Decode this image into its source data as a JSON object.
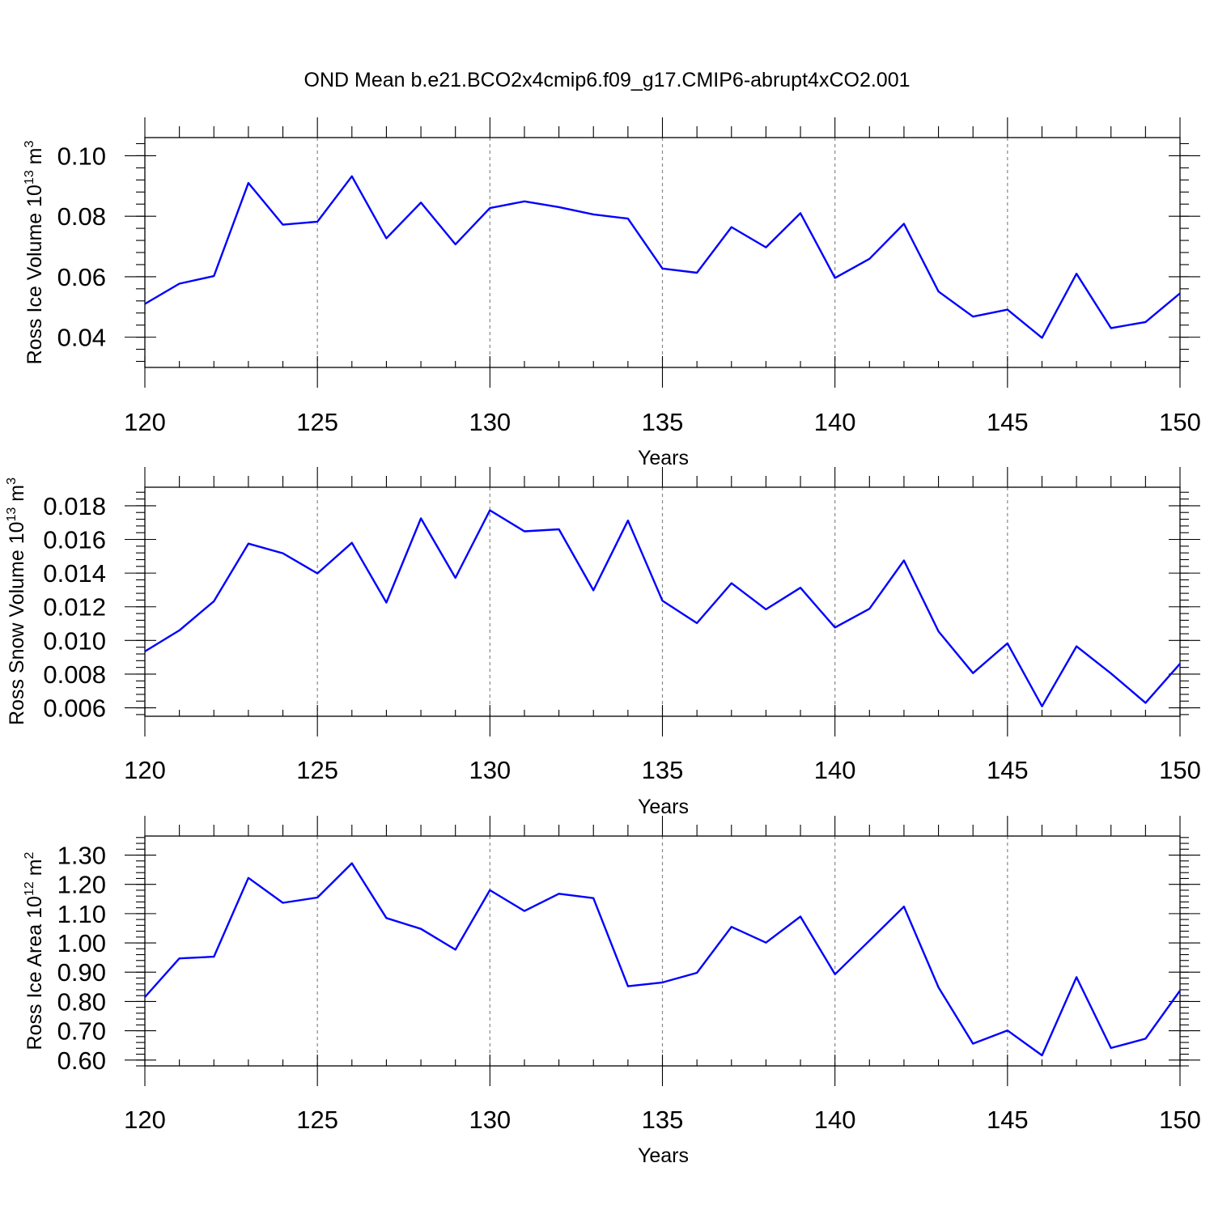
{
  "title": "OND Mean b.e21.BCO2x4cmip6.f09_g17.CMIP6-abrupt4xCO2.001",
  "colors": {
    "line": "#0000ff",
    "grid": "#888888",
    "axis": "#000000"
  },
  "chart_data": [
    {
      "type": "line",
      "xlabel": "Years",
      "ylabel": "Ross Ice Volume 10",
      "ylabel_sup1": "13",
      "ylabel_unit": " m",
      "ylabel_sup2": "3",
      "xlim": [
        120,
        150
      ],
      "ylim": [
        0.03,
        0.106
      ],
      "x_ticks": [
        "120",
        "125",
        "130",
        "135",
        "140",
        "145",
        "150"
      ],
      "y_ticks": [
        "0.04",
        "0.06",
        "0.08",
        "0.10"
      ],
      "y_tick_values": [
        0.04,
        0.06,
        0.08,
        0.1
      ],
      "y_minor_step": 0.004,
      "grid": "x dashed",
      "x": [
        120,
        121,
        122,
        123,
        124,
        125,
        126,
        127,
        128,
        129,
        130,
        131,
        132,
        133,
        134,
        135,
        136,
        137,
        138,
        139,
        140,
        141,
        142,
        143,
        144,
        145,
        146,
        147,
        148,
        149,
        150
      ],
      "series": [
        {
          "values": [
            0.051,
            0.0577,
            0.0602,
            0.091,
            0.0772,
            0.0782,
            0.0932,
            0.0727,
            0.0845,
            0.0707,
            0.0827,
            0.0849,
            0.083,
            0.0806,
            0.0792,
            0.0627,
            0.0613,
            0.0764,
            0.0697,
            0.081,
            0.0596,
            0.0659,
            0.0775,
            0.0551,
            0.0468,
            0.0491,
            0.0398,
            0.061,
            0.043,
            0.045,
            0.0545
          ]
        }
      ]
    },
    {
      "type": "line",
      "xlabel": "Years",
      "ylabel": "Ross Snow Volume 10",
      "ylabel_sup1": "13",
      "ylabel_unit": " m",
      "ylabel_sup2": "3",
      "xlim": [
        120,
        150
      ],
      "ylim": [
        0.0055,
        0.0191
      ],
      "x_ticks": [
        "120",
        "125",
        "130",
        "135",
        "140",
        "145",
        "150"
      ],
      "y_ticks": [
        "0.006",
        "0.008",
        "0.010",
        "0.012",
        "0.014",
        "0.016",
        "0.018"
      ],
      "y_tick_values": [
        0.006,
        0.008,
        0.01,
        0.012,
        0.014,
        0.016,
        0.018
      ],
      "y_minor_step": 0.0004,
      "grid": "x dashed",
      "x": [
        120,
        121,
        122,
        123,
        124,
        125,
        126,
        127,
        128,
        129,
        130,
        131,
        132,
        133,
        134,
        135,
        136,
        137,
        138,
        139,
        140,
        141,
        142,
        143,
        144,
        145,
        146,
        147,
        148,
        149,
        150
      ],
      "series": [
        {
          "values": [
            0.00935,
            0.0106,
            0.01233,
            0.01575,
            0.01518,
            0.01398,
            0.0158,
            0.01225,
            0.01725,
            0.01372,
            0.01773,
            0.01648,
            0.0166,
            0.01298,
            0.01712,
            0.01236,
            0.01103,
            0.0134,
            0.01185,
            0.01313,
            0.01077,
            0.01188,
            0.01475,
            0.01054,
            0.00806,
            0.00983,
            0.00609,
            0.00965,
            0.00804,
            0.0063,
            0.00862
          ]
        }
      ]
    },
    {
      "type": "line",
      "xlabel": "Years",
      "ylabel": "Ross Ice Area 10",
      "ylabel_sup1": "12",
      "ylabel_unit": " m",
      "ylabel_sup2": "2",
      "xlim": [
        120,
        150
      ],
      "ylim": [
        0.58,
        1.365
      ],
      "x_ticks": [
        "120",
        "125",
        "130",
        "135",
        "140",
        "145",
        "150"
      ],
      "y_ticks": [
        "0.60",
        "0.70",
        "0.80",
        "0.90",
        "1.00",
        "1.10",
        "1.20",
        "1.30"
      ],
      "y_tick_values": [
        0.6,
        0.7,
        0.8,
        0.9,
        1.0,
        1.1,
        1.2,
        1.3
      ],
      "y_minor_step": 0.02,
      "grid": "x dashed",
      "x": [
        120,
        121,
        122,
        123,
        124,
        125,
        126,
        127,
        128,
        129,
        130,
        131,
        132,
        133,
        134,
        135,
        136,
        137,
        138,
        139,
        140,
        141,
        142,
        143,
        144,
        145,
        146,
        147,
        148,
        149,
        150
      ],
      "series": [
        {
          "values": [
            0.815,
            0.947,
            0.953,
            1.222,
            1.137,
            1.155,
            1.272,
            1.085,
            1.048,
            0.977,
            1.18,
            1.109,
            1.168,
            1.153,
            0.852,
            0.865,
            0.898,
            1.055,
            1.001,
            1.09,
            0.893,
            1.008,
            1.124,
            0.848,
            0.656,
            0.701,
            0.616,
            0.883,
            0.641,
            0.673,
            0.837
          ]
        }
      ]
    }
  ]
}
